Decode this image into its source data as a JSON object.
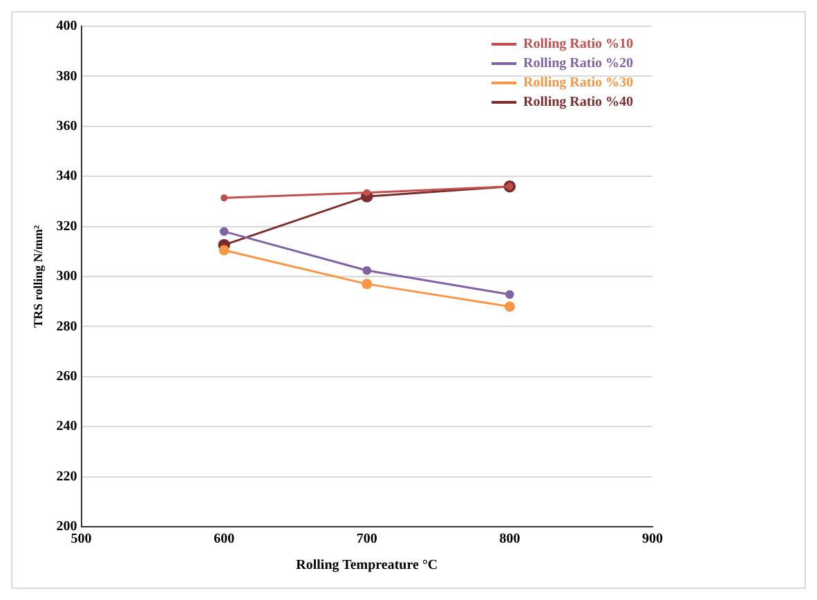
{
  "chart_data": {
    "type": "line",
    "xlabel": "Rolling Tempreature °C",
    "ylabel": "TRS rolling N/mm²",
    "x": [
      600,
      700,
      800
    ],
    "series": [
      {
        "name": "Rolling Ratio %10",
        "color": "#c0504d",
        "values": [
          331.4,
          333.5,
          336
        ]
      },
      {
        "name": "Rolling Ratio %20",
        "color": "#8064a2",
        "values": [
          318,
          302.4,
          292.8
        ]
      },
      {
        "name": "Rolling Ratio %30",
        "color": "#f79646",
        "values": [
          310.5,
          297,
          288
        ]
      },
      {
        "name": "Rolling Ratio %40",
        "color": "#7b2c2c",
        "values": [
          312.6,
          332,
          336
        ]
      }
    ],
    "xlim": [
      500,
      900
    ],
    "xticks": [
      500,
      600,
      700,
      800,
      900
    ],
    "ylim": [
      200,
      400
    ],
    "yticks": [
      200,
      220,
      240,
      260,
      280,
      300,
      320,
      340,
      360,
      380,
      400
    ],
    "grid": "y",
    "legend": "top right",
    "marker": "circle",
    "line_style": "solid"
  }
}
